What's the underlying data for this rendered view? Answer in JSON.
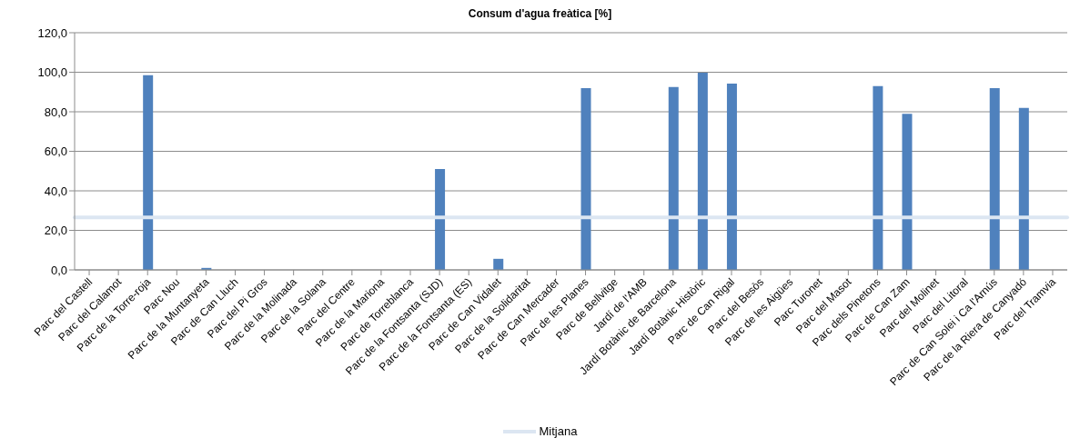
{
  "chart_data": {
    "type": "bar",
    "title": "Consum d'agua freàtica [%]",
    "categories": [
      "Parc del Castell",
      "Parc del Calamot",
      "Parc de la Torre-roja",
      "Parc Nou",
      "Parc de la Muntanyeta",
      "Parc de Can  Lluch",
      "Parc del Pi Gros",
      "Parc de la Molinada",
      "Parc de la Solana",
      "Parc del Centre",
      "Parc de la Mariona",
      "Parc de Torreblanca",
      "Parc de la Fontsanta  (SJD)",
      "Parc de la Fontsanta  (ES)",
      "Parc de Can  Vidalet",
      "Parc de la Solidaritat",
      "Parc de Can  Mercader",
      "Parc de les Planes",
      "Parc de Bellvitge",
      "Jardí de l'AMB",
      "Jardí Botànic de Barcelona",
      "Jardí Botànic Històric",
      "Parc de Can  Rigal",
      "Parc del Besòs",
      "Parc de les Aigües",
      "Parc Turonet",
      "Parc del Masot",
      "Parc dels Pinetons",
      "Parc de Can  Zam",
      "Parc del Molinet",
      "Parc del Litoral",
      "Parc de Can  Solei i Ca l'Arnús",
      "Parc de la Riera de Canyadó",
      "Parc del Tramvia"
    ],
    "values": [
      0,
      0,
      98.5,
      0,
      1,
      0,
      0,
      0,
      0,
      0,
      0,
      0,
      51,
      0,
      5.6,
      0,
      0,
      92,
      0,
      0,
      92.5,
      99.8,
      94.3,
      0,
      0,
      0,
      0,
      93,
      79,
      0,
      0,
      92,
      82,
      0
    ],
    "color": "#4f81bd",
    "ylim": [
      0,
      120
    ],
    "yticks": [
      {
        "value": 0,
        "label": "0,0"
      },
      {
        "value": 20,
        "label": "20,0"
      },
      {
        "value": 40,
        "label": "40,0"
      },
      {
        "value": 60,
        "label": "60,0"
      },
      {
        "value": 80,
        "label": "80,0"
      },
      {
        "value": 100,
        "label": "100,0"
      },
      {
        "value": 120,
        "label": "120,0"
      }
    ],
    "grid": "y",
    "legend": "bottom",
    "ref_lines": [
      {
        "axis": "y",
        "value": 26.5,
        "label": "Mitjana",
        "color": "#dce6f2"
      }
    ]
  }
}
